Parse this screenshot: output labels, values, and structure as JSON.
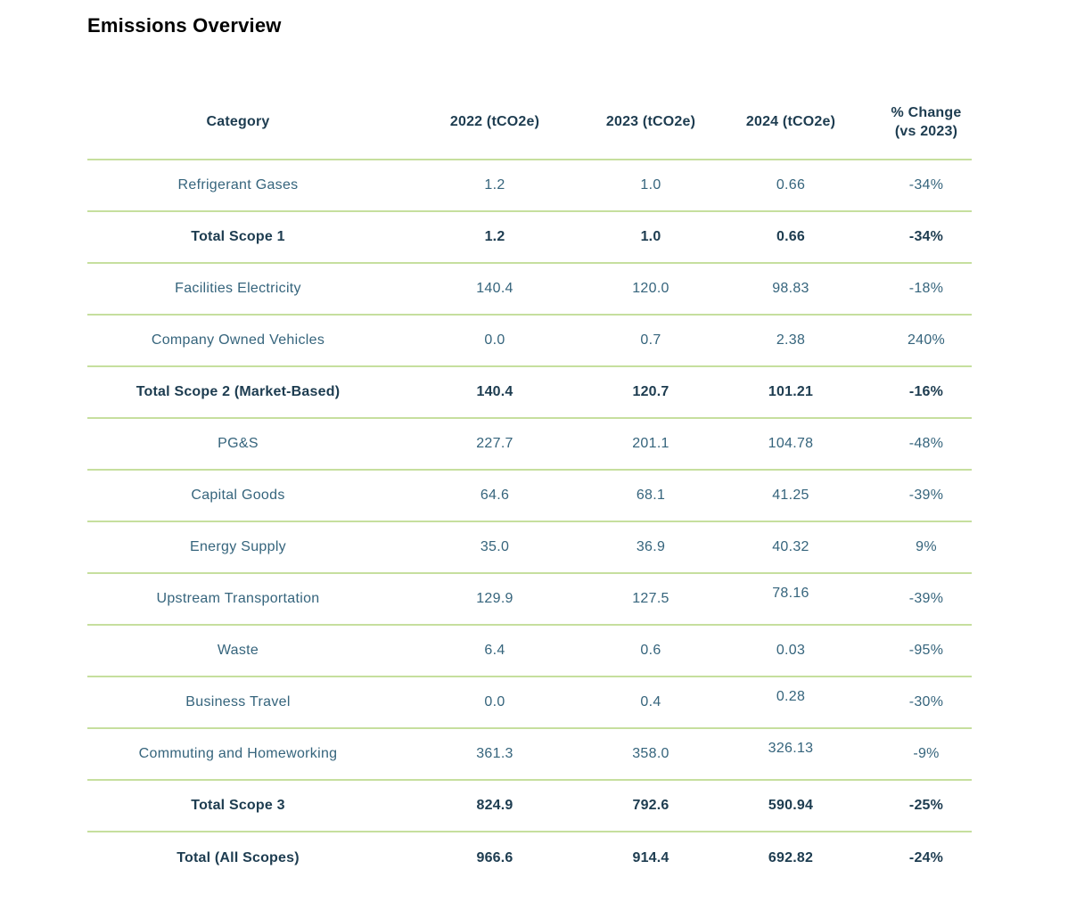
{
  "title": "Emissions Overview",
  "colors": {
    "divider": "#c6df9e",
    "header_text": "#1d3c50",
    "body_text": "#35647c",
    "title_text": "#000000"
  },
  "table": {
    "columns": [
      {
        "label": "Category"
      },
      {
        "label": "2022 (tCO2e)"
      },
      {
        "label": "2023 (tCO2e)"
      },
      {
        "label": "2024 (tCO2e)"
      },
      {
        "label": "% Change (vs 2023)",
        "line1": "% Change",
        "line2": "(vs 2023)"
      }
    ],
    "rows": [
      {
        "category": "Refrigerant Gases",
        "v2022": "1.2",
        "v2023": "1.0",
        "v2024": "0.66",
        "change": "-34%",
        "bold": false,
        "raised": false
      },
      {
        "category": "Total Scope 1",
        "v2022": "1.2",
        "v2023": "1.0",
        "v2024": "0.66",
        "change": "-34%",
        "bold": true,
        "raised": false
      },
      {
        "category": "Facilities Electricity",
        "v2022": "140.4",
        "v2023": "120.0",
        "v2024": "98.83",
        "change": "-18%",
        "bold": false,
        "raised": false
      },
      {
        "category": "Company Owned Vehicles",
        "v2022": "0.0",
        "v2023": "0.7",
        "v2024": "2.38",
        "change": "240%",
        "bold": false,
        "raised": false
      },
      {
        "category": "Total Scope 2 (Market-Based)",
        "v2022": "140.4",
        "v2023": "120.7",
        "v2024": "101.21",
        "change": "-16%",
        "bold": true,
        "raised": false
      },
      {
        "category": "PG&S",
        "v2022": "227.7",
        "v2023": "201.1",
        "v2024": "104.78",
        "change": "-48%",
        "bold": false,
        "raised": false
      },
      {
        "category": "Capital Goods",
        "v2022": "64.6",
        "v2023": "68.1",
        "v2024": "41.25",
        "change": "-39%",
        "bold": false,
        "raised": false
      },
      {
        "category": "Energy Supply",
        "v2022": "35.0",
        "v2023": "36.9",
        "v2024": "40.32",
        "change": "9%",
        "bold": false,
        "raised": false
      },
      {
        "category": "Upstream Transportation",
        "v2022": "129.9",
        "v2023": "127.5",
        "v2024": "78.16",
        "change": "-39%",
        "bold": false,
        "raised": true
      },
      {
        "category": "Waste",
        "v2022": "6.4",
        "v2023": "0.6",
        "v2024": "0.03",
        "change": "-95%",
        "bold": false,
        "raised": false
      },
      {
        "category": "Business Travel",
        "v2022": "0.0",
        "v2023": "0.4",
        "v2024": "0.28",
        "change": "-30%",
        "bold": false,
        "raised": true
      },
      {
        "category": "Commuting and Homeworking",
        "v2022": "361.3",
        "v2023": "358.0",
        "v2024": "326.13",
        "change": "-9%",
        "bold": false,
        "raised": true
      },
      {
        "category": "Total Scope 3",
        "v2022": "824.9",
        "v2023": "792.6",
        "v2024": "590.94",
        "change": "-25%",
        "bold": true,
        "raised": false
      },
      {
        "category": "Total (All Scopes)",
        "v2022": "966.6",
        "v2023": "914.4",
        "v2024": "692.82",
        "change": "-24%",
        "bold": true,
        "raised": false
      }
    ]
  }
}
